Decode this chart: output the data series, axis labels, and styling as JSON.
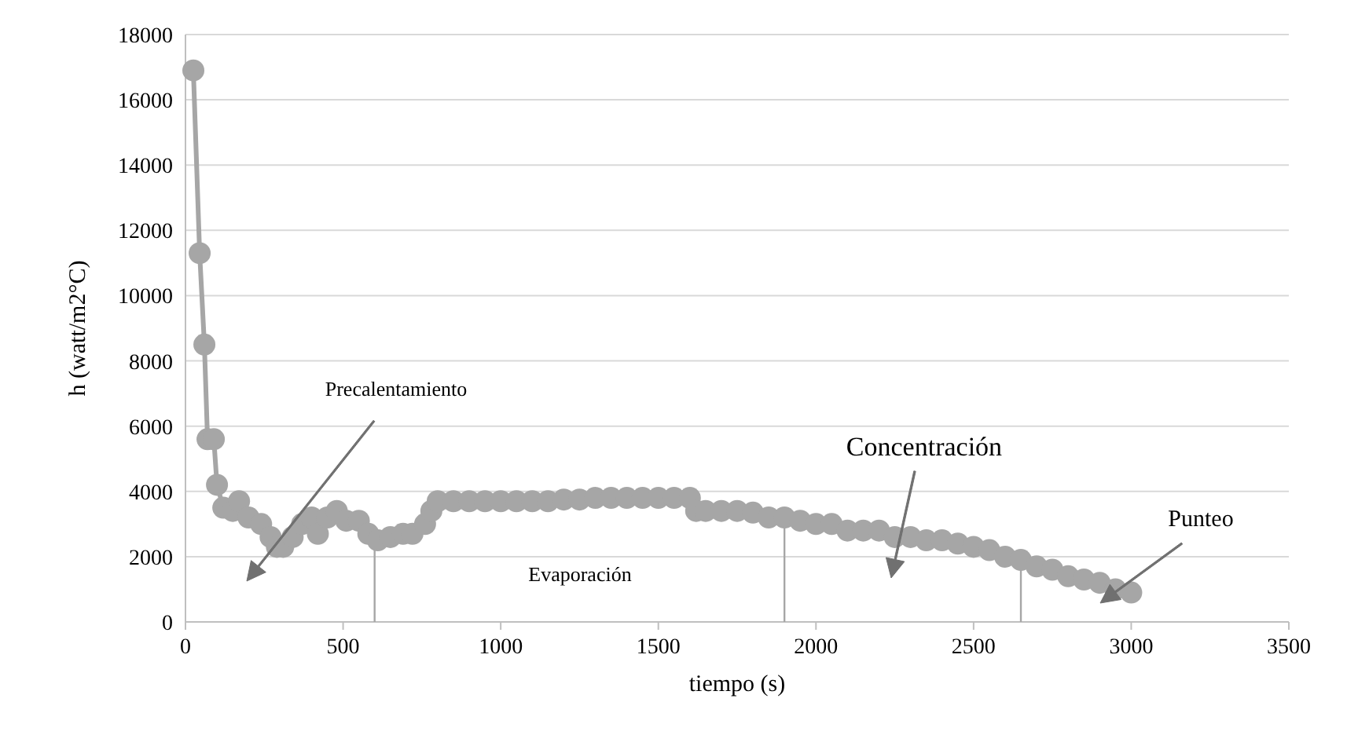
{
  "chart_data": {
    "type": "line",
    "xlabel": "tiempo (s)",
    "ylabel": "h (watt/m2°C)",
    "x": [
      25,
      45,
      60,
      70,
      90,
      100,
      120,
      150,
      170,
      200,
      240,
      270,
      290,
      310,
      340,
      370,
      400,
      420,
      450,
      480,
      510,
      550,
      580,
      610,
      650,
      690,
      720,
      760,
      780,
      800,
      850,
      900,
      950,
      1000,
      1050,
      1100,
      1150,
      1200,
      1250,
      1300,
      1350,
      1400,
      1450,
      1500,
      1550,
      1600,
      1620,
      1650,
      1700,
      1750,
      1800,
      1850,
      1900,
      1950,
      2000,
      2050,
      2100,
      2150,
      2200,
      2250,
      2300,
      2350,
      2400,
      2450,
      2500,
      2550,
      2600,
      2650,
      2700,
      2750,
      2800,
      2850,
      2900,
      2950,
      3000
    ],
    "series": [
      {
        "color": "#a6a6a6",
        "values": [
          16900,
          11300,
          8500,
          5600,
          5600,
          4200,
          3500,
          3400,
          3700,
          3200,
          3000,
          2600,
          2300,
          2300,
          2600,
          3000,
          3200,
          2700,
          3200,
          3400,
          3100,
          3100,
          2700,
          2500,
          2600,
          2700,
          2700,
          3000,
          3400,
          3700,
          3700,
          3700,
          3700,
          3700,
          3700,
          3700,
          3700,
          3750,
          3750,
          3800,
          3800,
          3800,
          3800,
          3800,
          3800,
          3800,
          3400,
          3400,
          3400,
          3400,
          3350,
          3200,
          3200,
          3100,
          3000,
          3000,
          2800,
          2800,
          2800,
          2600,
          2600,
          2500,
          2500,
          2400,
          2300,
          2200,
          2000,
          1900,
          1700,
          1600,
          1400,
          1300,
          1200,
          1000,
          900
        ]
      }
    ],
    "xlim": [
      0,
      3500
    ],
    "xticks": [
      0,
      500,
      1000,
      1500,
      2000,
      2500,
      3000,
      3500
    ],
    "ylim": [
      0,
      18000
    ],
    "yticks": [
      0,
      2000,
      4000,
      6000,
      8000,
      10000,
      12000,
      14000,
      16000,
      18000
    ],
    "grid": "y",
    "marker": "circle",
    "line_style": "solid",
    "ref_lines": [
      {
        "axis": "x",
        "value": 600,
        "color": "#a6a6a6"
      },
      {
        "axis": "x",
        "value": 1900,
        "color": "#a6a6a6"
      },
      {
        "axis": "x",
        "value": 2650,
        "color": "#a6a6a6"
      }
    ],
    "annotations": [
      "Precalentamiento",
      "Evaporación",
      "Concentración",
      "Punteo"
    ]
  }
}
